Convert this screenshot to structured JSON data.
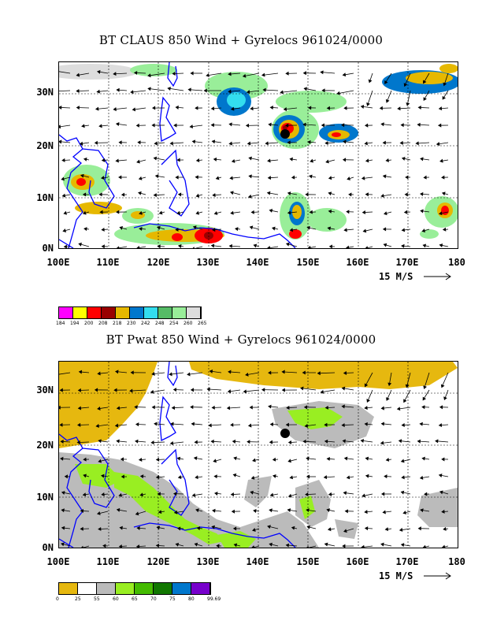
{
  "panels": [
    {
      "title": "BT CLAUS 850 Wind + Gyrelocs 961024/0000",
      "lat_labels": [
        "30N",
        "20N",
        "10N",
        "0N"
      ],
      "lon_labels": [
        "100E",
        "110E",
        "120E",
        "130E",
        "140E",
        "150E",
        "160E",
        "170E",
        "180"
      ],
      "scale_label": "15 M/S",
      "colorbar_colors": [
        "#ff00ff",
        "#ffff00",
        "#ff0000",
        "#990000",
        "#e6b800",
        "#0077cc",
        "#33ddee",
        "#55bb66",
        "#99ee99",
        "#dddddd"
      ],
      "colorbar_labels": [
        "184",
        "194",
        "200",
        "208",
        "218",
        "230",
        "242",
        "248",
        "254",
        "260",
        "265"
      ]
    },
    {
      "title": "BT Pwat 850 Wind + Gyrelocs 961024/0000",
      "lat_labels": [
        "30N",
        "20N",
        "10N",
        "0N"
      ],
      "lon_labels": [
        "100E",
        "110E",
        "120E",
        "130E",
        "140E",
        "150E",
        "160E",
        "170E",
        "180"
      ],
      "scale_label": "15 M/S",
      "colorbar_colors": [
        "#e6b80f",
        "#ffffff",
        "#bbbbbb",
        "#99ee22",
        "#44bb00",
        "#117700",
        "#0077cc",
        "#7700cc"
      ],
      "colorbar_labels": [
        "0",
        "25",
        "55",
        "60",
        "65",
        "70",
        "75",
        "80",
        "99.69"
      ]
    }
  ],
  "map_extent": {
    "lon_min": 100,
    "lon_max": 180,
    "lat_min": 0,
    "lat_max": 36
  },
  "gyre_location": {
    "lon": 145,
    "lat": 22.5
  },
  "colors": {
    "coastline": "#0000ff",
    "grid": "#000000",
    "vector": "#000000",
    "gyre_marker": "#000000"
  }
}
